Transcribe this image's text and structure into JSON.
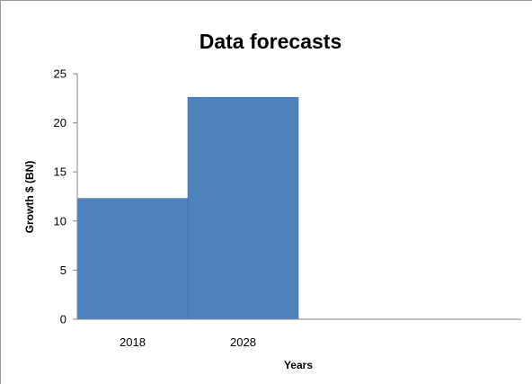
{
  "chart_data": {
    "type": "bar",
    "title": "Data forecasts",
    "xlabel": "Years",
    "ylabel": "Growth $ (BN)",
    "categories": [
      "2018",
      "2028"
    ],
    "values": [
      12.3,
      22.6
    ],
    "ylim": [
      0,
      25
    ],
    "yticks": [
      "0",
      "5",
      "10",
      "15",
      "20",
      "25"
    ],
    "grid": false,
    "legend": "none",
    "bar_color": "#4F81BD"
  }
}
